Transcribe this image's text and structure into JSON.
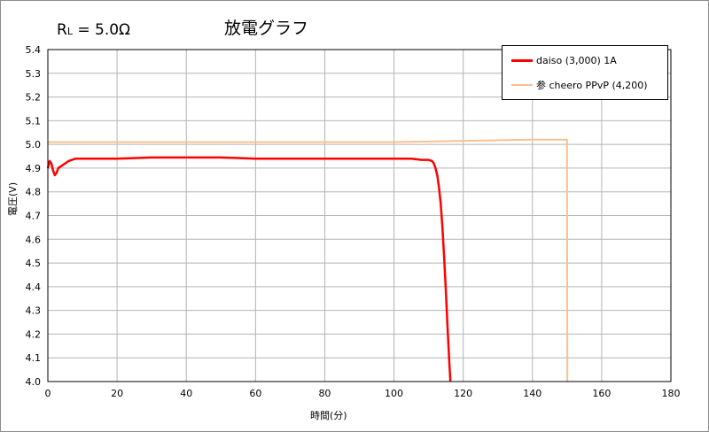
{
  "header": {
    "rl_label": "R",
    "rl_sub": "L",
    "rl_value": " = 5.0Ω"
  },
  "chart_data": {
    "type": "line",
    "title": "放電グラフ",
    "xlabel": "時間(分)",
    "ylabel": "電圧(V)",
    "xlim": [
      0,
      180
    ],
    "ylim": [
      4.0,
      5.4
    ],
    "x_ticks": [
      "0",
      "20",
      "40",
      "60",
      "80",
      "100",
      "120",
      "140",
      "160",
      "180"
    ],
    "y_ticks": [
      "4.0",
      "4.1",
      "4.2",
      "4.3",
      "4.4",
      "4.5",
      "4.6",
      "4.7",
      "4.8",
      "4.9",
      "5.0",
      "5.1",
      "5.2",
      "5.3",
      "5.4"
    ],
    "grid": true,
    "legend_position": "top-right",
    "series": [
      {
        "name": "daiso (3,000) 1A",
        "color": "#ff0000",
        "x": [
          0,
          0.5,
          1,
          1.5,
          2,
          2.5,
          3,
          4,
          5,
          6,
          8,
          10,
          15,
          20,
          30,
          40,
          50,
          60,
          70,
          80,
          90,
          100,
          105,
          108,
          110,
          111,
          111.5,
          112,
          112.5,
          113,
          113.5,
          114,
          114.5,
          115,
          115.5,
          116,
          116.3
        ],
        "y": [
          4.9,
          4.93,
          4.92,
          4.89,
          4.87,
          4.88,
          4.9,
          4.91,
          4.92,
          4.93,
          4.94,
          4.94,
          4.94,
          4.94,
          4.945,
          4.945,
          4.945,
          4.94,
          4.94,
          4.94,
          4.94,
          4.94,
          4.94,
          4.935,
          4.935,
          4.93,
          4.92,
          4.9,
          4.87,
          4.82,
          4.75,
          4.65,
          4.52,
          4.38,
          4.22,
          4.08,
          4.0
        ]
      },
      {
        "name": "参 cheero PPvP (4,200)",
        "color": "#fac090",
        "x": [
          0,
          10,
          20,
          40,
          60,
          80,
          100,
          120,
          140,
          145,
          148,
          149.5,
          150,
          150.1
        ],
        "y": [
          5.01,
          5.01,
          5.01,
          5.01,
          5.01,
          5.01,
          5.01,
          5.015,
          5.02,
          5.02,
          5.02,
          5.02,
          5.02,
          4.0
        ]
      }
    ]
  }
}
